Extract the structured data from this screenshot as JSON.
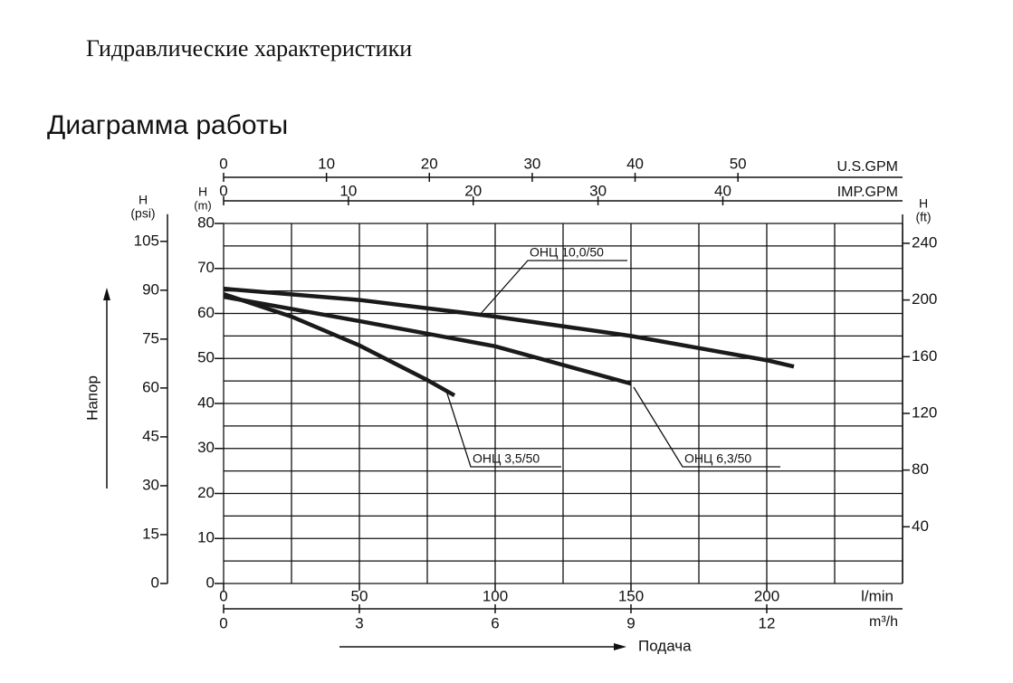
{
  "document_title": "Гидравлические характеристики",
  "chart_data": {
    "type": "line",
    "title": "Диаграмма работы",
    "xlabel": "Подача",
    "ylabel": "Напор",
    "xunit": "l/min",
    "xlim": [
      0,
      250
    ],
    "xticks": [
      0,
      50,
      100,
      150,
      200
    ],
    "xgrid": [
      0,
      25,
      50,
      75,
      100,
      125,
      150,
      175,
      200,
      225,
      250
    ],
    "yunit": [
      "H",
      "(m)"
    ],
    "ylim": [
      0,
      80
    ],
    "yticks": [
      0,
      10,
      20,
      30,
      40,
      50,
      60,
      70,
      80
    ],
    "ygrid": [
      0,
      5,
      10,
      15,
      20,
      25,
      30,
      35,
      40,
      45,
      50,
      55,
      60,
      65,
      70,
      75,
      80
    ],
    "x2": {
      "unit": "m³/h",
      "lim": [
        0,
        15
      ],
      "ticks": [
        0,
        3,
        6,
        9,
        12
      ]
    },
    "x3": {
      "unit": "U.S.GPM",
      "lim": [
        0,
        66
      ],
      "ticks": [
        0,
        10,
        20,
        30,
        40,
        50
      ]
    },
    "x4": {
      "unit": "IMP.GPM",
      "lim": [
        0,
        54.4
      ],
      "ticks": [
        0,
        10,
        20,
        30,
        40
      ]
    },
    "y2": {
      "unit": [
        "H",
        "(psi)"
      ],
      "lim": [
        0,
        110.5
      ],
      "ticks": [
        0,
        15,
        30,
        45,
        60,
        75,
        90,
        105
      ]
    },
    "y3": {
      "unit": [
        "H",
        "(ft)"
      ],
      "lim": [
        0,
        254
      ],
      "ticks": [
        40,
        80,
        120,
        160,
        200,
        240
      ]
    },
    "grid": true,
    "color": "#1a1a1a",
    "series": [
      {
        "name": "ОНЦ 10,0/50",
        "x": [
          0,
          50,
          100,
          150,
          200,
          210
        ],
        "values": [
          65.5,
          63,
          59.3,
          55,
          49.6,
          48.2
        ]
      },
      {
        "name": "ОНЦ 3,5/50",
        "x": [
          0,
          25,
          50,
          75,
          85
        ],
        "values": [
          64.3,
          59.3,
          52.9,
          45.2,
          41.8
        ]
      },
      {
        "name": "ОНЦ 6,3/50",
        "x": [
          0,
          50,
          100,
          150
        ],
        "values": [
          63.7,
          58.3,
          52.7,
          44.4
        ]
      }
    ]
  }
}
